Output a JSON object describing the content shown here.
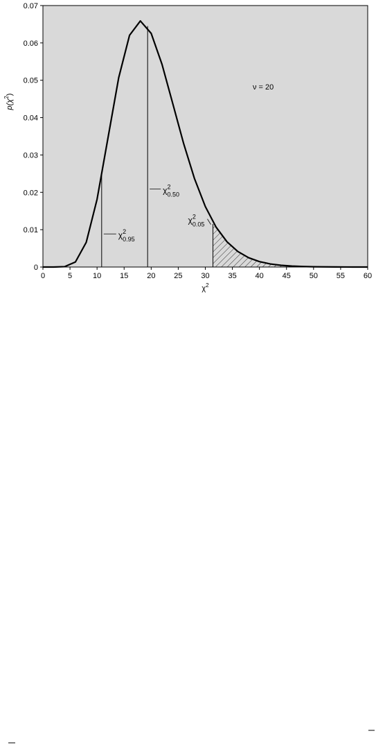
{
  "chart_data": {
    "type": "line",
    "annotation": "ν = 20",
    "x_label": {
      "base": "χ",
      "sup": "2"
    },
    "y_label": {
      "base": "p(χ",
      "sup": "2",
      "end": ")"
    },
    "x": [
      0,
      2,
      4,
      6,
      8,
      10,
      12,
      14,
      16,
      18,
      20,
      22,
      24,
      26,
      28,
      30,
      32,
      34,
      36,
      38,
      40,
      42,
      44,
      46,
      48,
      50,
      52,
      54,
      56,
      58,
      60
    ],
    "values": [
      0,
      0,
      0.0001,
      0.00135,
      0.00662,
      0.01813,
      0.03442,
      0.0507,
      0.06204,
      0.06588,
      0.06255,
      0.05426,
      0.04368,
      0.03303,
      0.02367,
      0.0162,
      0.01066,
      0.00676,
      0.00416,
      0.00249,
      0.00145,
      0.00083,
      0.00046,
      0.00025,
      0.00014,
      7e-05,
      4e-05,
      2e-05,
      1e-05,
      0,
      0
    ],
    "color": "#000000",
    "critical_values": [
      {
        "base": "χ",
        "sup": "2",
        "sub": "0.95",
        "x": 10.85,
        "p": 0.0255
      },
      {
        "base": "χ",
        "sup": "2",
        "sub": "0.50",
        "x": 19.34,
        "p": 0.0645
      },
      {
        "base": "χ",
        "sup": "2",
        "sub": "0.05",
        "x": 31.41,
        "p": 0.0115
      }
    ],
    "xlim": [
      0,
      60
    ],
    "xticks": [
      0,
      5,
      10,
      15,
      20,
      25,
      30,
      35,
      40,
      45,
      50,
      55,
      60
    ],
    "ylim": [
      0,
      0.07
    ],
    "yticks": [
      0,
      0.01,
      0.02,
      0.03,
      0.04,
      0.05,
      0.06,
      0.07
    ],
    "background": "#d9d9d9"
  }
}
